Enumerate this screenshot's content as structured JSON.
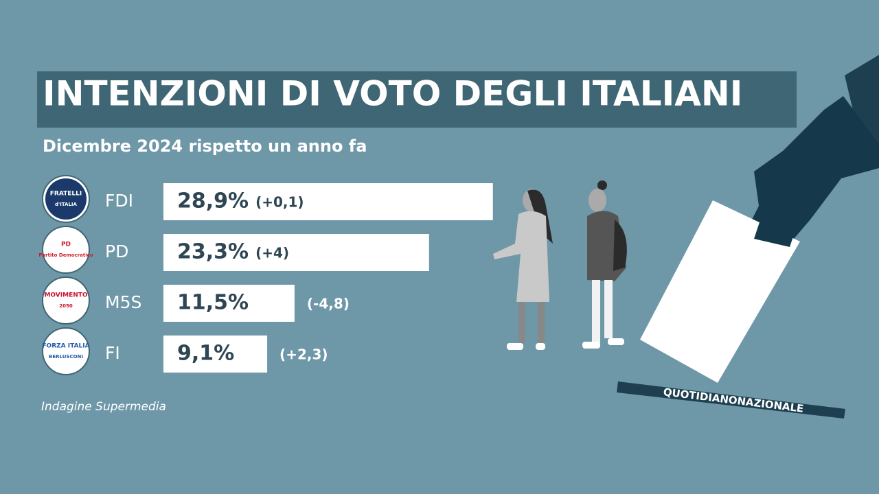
{
  "chart_data": {
    "type": "bar",
    "title": "INTENZIONI DI VOTO DEGLI ITALIANI",
    "subtitle": "Dicembre 2024 rispetto un anno fa",
    "categories": [
      "FDI",
      "PD",
      "M5S",
      "FI"
    ],
    "values": [
      28.9,
      23.3,
      11.5,
      9.1
    ],
    "value_labels": [
      "28,9%",
      "23,3%",
      "11,5%",
      "9,1%"
    ],
    "change_labels": [
      "(+0,1)",
      "(+4)",
      "(-4,8)",
      "(+2,3)"
    ],
    "color": "#ffffff",
    "logos": [
      [
        "FRATELLI",
        "d'ITALIA"
      ],
      [
        "PD",
        "Partito Democratico"
      ],
      [
        "MOVIMENTO",
        "2050"
      ],
      [
        "FORZA ITALIA",
        "BERLUSCONI"
      ]
    ],
    "source": "Indagine Supermedia",
    "brand": "QUOTIDIANONAZIONALE"
  }
}
